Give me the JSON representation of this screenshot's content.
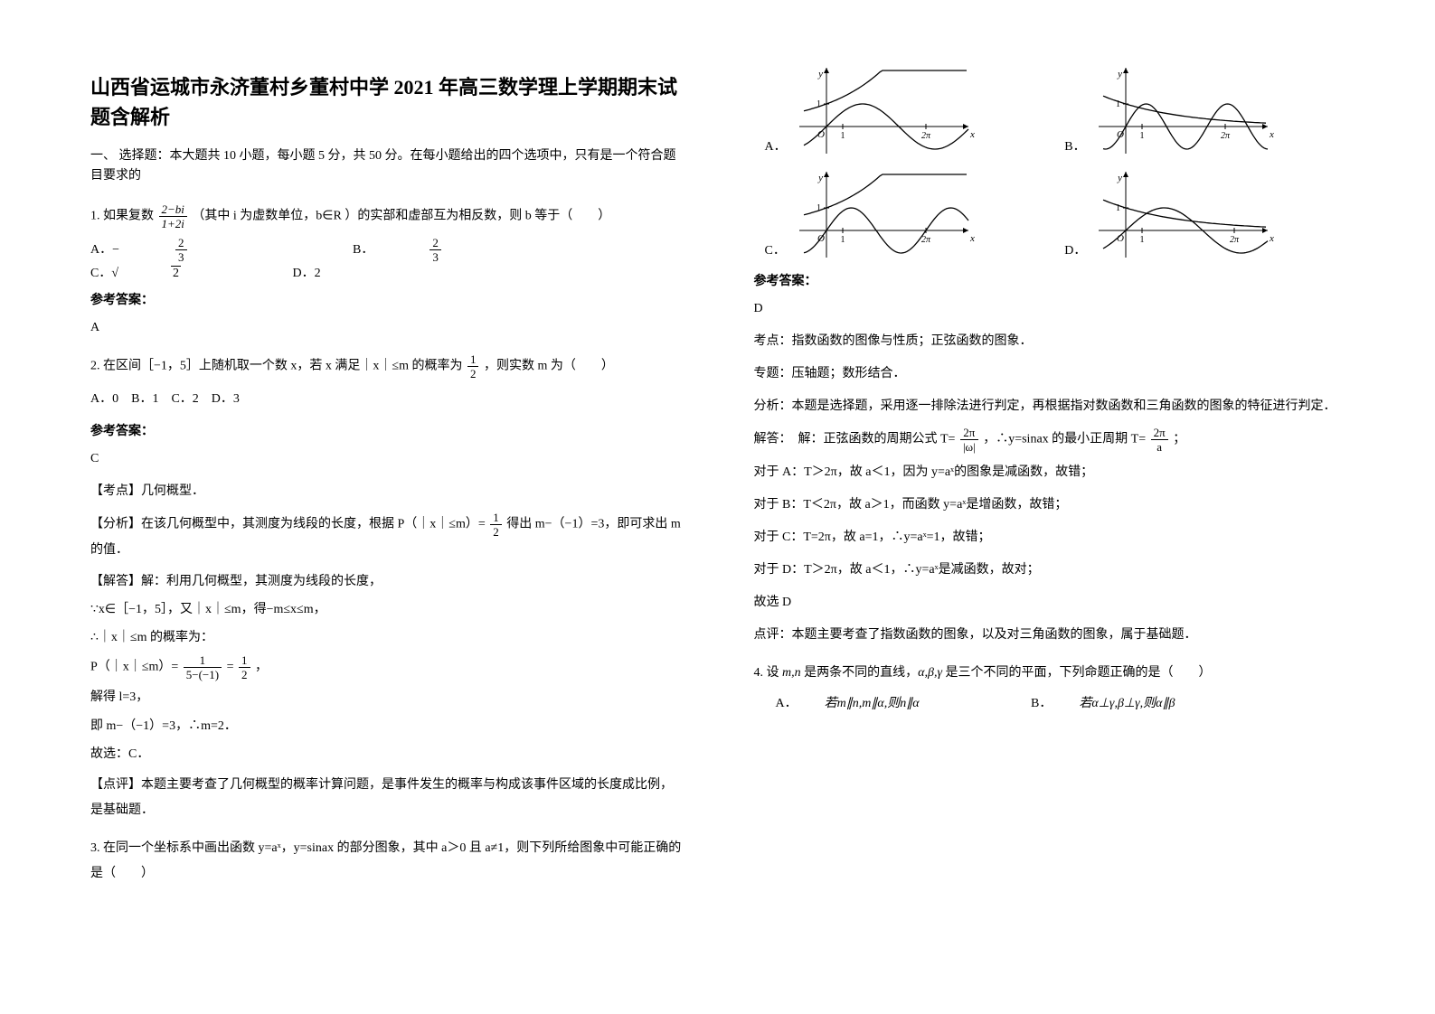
{
  "title": "山西省运城市永济董村乡董村中学 2021 年高三数学理上学期期末试题含解析",
  "section1": "一、 选择题：本大题共 10 小题，每小题 5 分，共 50 分。在每小题给出的四个选项中，只有是一个符合题目要求的",
  "q1": {
    "stem_a": "1. 如果复数",
    "frac_num": "2−bi",
    "frac_den": "1+2i",
    "stem_b": " （其中 i 为虚数单位，b∈R ）的实部和虚部互为相反数，则 b 等于（　　）",
    "optA_pre": "A．−",
    "optA_num": "2",
    "optA_den": "3",
    "optB_pre": "B．",
    "optB_num": "2",
    "optB_den": "3",
    "optC": "C．√",
    "optC_rad": "2",
    "optD": "D．2",
    "ans_label": "参考答案：",
    "ans": "A"
  },
  "q2": {
    "stem_a": "2. 在区间［−1，5］上随机取一个数 x，若 x 满足｜x｜≤m 的概率为",
    "frac_num": "1",
    "frac_den": "2",
    "stem_b": "，则实数 m 为（　　）",
    "opts": "A．0　B．1　C．2　D．3",
    "ans_label": "参考答案：",
    "ans": "C",
    "kd": "【考点】几何概型．",
    "fx_a": "【分析】在该几何概型中，其测度为线段的长度，根据 P（｜x｜≤m）=",
    "fx_num": "1",
    "fx_den": "2",
    "fx_b": "得出 m−（−1）=3，即可求出 m 的值．",
    "jd1": "【解答】解：利用几何概型，其测度为线段的长度，",
    "jd2": "∵x∈［−1，5］，又｜x｜≤m，得−m≤x≤m，",
    "jd3": "∴｜x｜≤m 的概率为：",
    "jd4_a": "P（｜x｜≤m）=",
    "jd4_num1": "1",
    "jd4_den1": "5−(−1)",
    "jd4_mid": "=",
    "jd4_num2": "1",
    "jd4_den2": "2",
    "jd4_b": "，",
    "jd5": "解得 l=3，",
    "jd6": "即 m−（−1）=3，∴m=2．",
    "jd7": "故选：C．",
    "dp": "【点评】本题主要考查了几何概型的概率计算问题，是事件发生的概率与构成该事件区域的长度成比例，是基础题．"
  },
  "q3": {
    "stem": "3. 在同一个坐标系中画出函数 y=aˣ，y=sinax 的部分图象，其中 a＞0 且 a≠1，则下列所给图象中可能正确的是（　　）",
    "labelA": "A．",
    "labelB": "B．",
    "labelC": "C．",
    "labelD": "D．",
    "ans_label": "参考答案：",
    "ans": "D",
    "kd": "考点：指数函数的图像与性质；正弦函数的图象．",
    "zt": "专题：压轴题；数形结合．",
    "fx": "分析：本题是选择题，采用逐一排除法进行判定，再根据指对数函数和三角函数的图象的特征进行判定．",
    "jd1_a": "解答：　解：正弦函数的周期公式 T=",
    "jd1_num": "2π",
    "jd1_den": "|ω|",
    "jd1_b": "，∴y=sinax 的最小正周期 T=",
    "jd1_num2": "2π",
    "jd1_den2": "a",
    "jd1_c": "；",
    "jd2": "对于 A：T＞2π，故 a＜1，因为 y=aˣ的图象是减函数，故错；",
    "jd3": "对于 B：T＜2π，故 a＞1，而函数 y=aˣ是增函数，故错；",
    "jd4": "对于 C：T=2π，故 a=1，∴y=aˣ=1，故错；",
    "jd5": "对于 D：T＞2π，故 a＜1，∴y=aˣ是减函数，故对；",
    "jd6": "故选 D",
    "dp": "点评：本题主要考查了指数函数的图象，以及对三角函数的图象，属于基础题．"
  },
  "q4": {
    "stem_a": "4. 设 ",
    "mn": "m,n",
    "stem_b": " 是两条不同的直线，",
    "abg": "α,β,γ",
    "stem_c": " 是三个不同的平面，下列命题正确的是（　　）",
    "optA_pre": "A．",
    "optA": "若m∥n,m∥α,则n∥α",
    "optB_pre": "B．",
    "optB": "若α⊥γ,β⊥γ,则α∥β"
  },
  "graph": {
    "axis_color": "#000000",
    "curve_color": "#000000",
    "bg": "#ffffff",
    "y_label": "y",
    "x_label": "x",
    "origin": "O",
    "tick1": "1",
    "tick2pi": "2π"
  }
}
